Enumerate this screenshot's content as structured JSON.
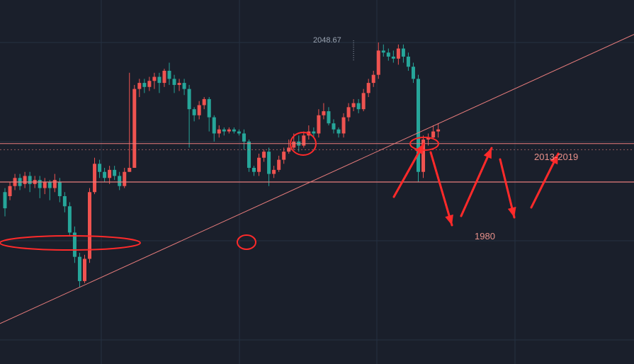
{
  "chart_data": {
    "type": "candlestick",
    "title": "",
    "xlabel": "",
    "ylabel": "",
    "ylim": [
      1890,
      2070
    ],
    "colors": {
      "background": "#1a1f2b",
      "grid": "#253041",
      "up": "#ef5350",
      "down": "#26a69a",
      "line": "#e87c7c",
      "annotation": "#ff2a2a",
      "label": "#e8908a",
      "high_label": "#9aa4b2"
    },
    "high_label": "2048.67",
    "levels": [
      {
        "name": "resistance",
        "value": 1999,
        "style": "solid"
      },
      {
        "name": "reference",
        "value": 1996,
        "style": "dotted"
      },
      {
        "name": "support",
        "value": 1980,
        "label": "1980"
      }
    ],
    "zone_label": "2013-2019",
    "trendline": {
      "from": [
        0,
        1910
      ],
      "to": [
        120,
        2053
      ]
    },
    "candles": [
      [
        1975,
        1967,
        1977,
        1963
      ],
      [
        1973,
        1978,
        1980,
        1971
      ],
      [
        1978,
        1982,
        1984,
        1976
      ],
      [
        1982,
        1978,
        1984,
        1976
      ],
      [
        1979,
        1983,
        1985,
        1977
      ],
      [
        1983,
        1979,
        1985,
        1975
      ],
      [
        1979,
        1981,
        1983,
        1977
      ],
      [
        1981,
        1977,
        1983,
        1972
      ],
      [
        1977,
        1980,
        1982,
        1974
      ],
      [
        1980,
        1977,
        1981,
        1971
      ],
      [
        1977,
        1981,
        1984,
        1975
      ],
      [
        1980,
        1973,
        1982,
        1970
      ],
      [
        1973,
        1968,
        1975,
        1965
      ],
      [
        1968,
        1955,
        1970,
        1953
      ],
      [
        1955,
        1943,
        1958,
        1940
      ],
      [
        1943,
        1931,
        1945,
        1928
      ],
      [
        1931,
        1942,
        1944,
        1930
      ],
      [
        1942,
        1975,
        1977,
        1940
      ],
      [
        1975,
        1989,
        1992,
        1974
      ],
      [
        1989,
        1985,
        1991,
        1982
      ],
      [
        1985,
        1982,
        1987,
        1980
      ],
      [
        1982,
        1986,
        1988,
        1979
      ],
      [
        1986,
        1983,
        1988,
        1981
      ],
      [
        1983,
        1978,
        1985,
        1976
      ],
      [
        1978,
        1985,
        1987,
        1977
      ],
      [
        1985,
        1987,
        2034,
        1985
      ],
      [
        1987,
        2026,
        2028,
        2018
      ],
      [
        2026,
        2029,
        2031,
        2022
      ],
      [
        2029,
        2027,
        2031,
        2024
      ],
      [
        2027,
        2030,
        2032,
        2025
      ],
      [
        2030,
        2032,
        2034,
        2026
      ],
      [
        2032,
        2029,
        2034,
        2024
      ],
      [
        2029,
        2035,
        2036,
        2027
      ],
      [
        2035,
        2031,
        2039,
        2028
      ],
      [
        2031,
        2028,
        2033,
        2024
      ],
      [
        2028,
        2029,
        2031,
        2025
      ],
      [
        2029,
        2026,
        2031,
        2023
      ],
      [
        2026,
        2016,
        2028,
        1997
      ],
      [
        2016,
        2013,
        2017,
        2010
      ],
      [
        2013,
        2018,
        2020,
        2011
      ],
      [
        2018,
        2021,
        2022,
        2016
      ],
      [
        2021,
        2012,
        2022,
        2005
      ],
      [
        2012,
        2004,
        2013,
        2000
      ],
      [
        2004,
        2006,
        2008,
        2002
      ],
      [
        2006,
        2005,
        2007,
        2003
      ],
      [
        2005,
        2006,
        2007,
        2004
      ],
      [
        2006,
        2005,
        2007,
        2004
      ],
      [
        2005,
        2004,
        2006,
        2003
      ],
      [
        2004,
        2000,
        2006,
        1996
      ],
      [
        2000,
        1987,
        2001,
        1985
      ],
      [
        1987,
        1985,
        1988,
        1983
      ],
      [
        1985,
        1992,
        1994,
        1983
      ],
      [
        1992,
        1995,
        1996,
        1990
      ],
      [
        1995,
        1984,
        1997,
        1978
      ],
      [
        1984,
        1986,
        1988,
        1982
      ],
      [
        1986,
        1991,
        1993,
        1985
      ],
      [
        1991,
        1995,
        1997,
        1989
      ],
      [
        1995,
        1997,
        2001,
        1994
      ],
      [
        1997,
        2000,
        2004,
        1996
      ],
      [
        2000,
        1998,
        2003,
        1995
      ],
      [
        1998,
        2003,
        2005,
        1997
      ],
      [
        2003,
        2005,
        2008,
        2001
      ],
      [
        2005,
        2004,
        2007,
        2002
      ],
      [
        2004,
        2013,
        2016,
        2002
      ],
      [
        2013,
        2015,
        2019,
        2011
      ],
      [
        2015,
        2009,
        2017,
        2008
      ],
      [
        2009,
        2006,
        2011,
        2004
      ],
      [
        2006,
        2004,
        2007,
        2002
      ],
      [
        2004,
        2012,
        2014,
        2002
      ],
      [
        2012,
        2017,
        2019,
        2010
      ],
      [
        2017,
        2019,
        2021,
        2015
      ],
      [
        2019,
        2016,
        2021,
        2014
      ],
      [
        2016,
        2024,
        2026,
        2015
      ],
      [
        2024,
        2029,
        2031,
        2022
      ],
      [
        2029,
        2033,
        2035,
        2027
      ],
      [
        2033,
        2045,
        2049,
        2031
      ],
      [
        2045,
        2044,
        2048,
        2042
      ],
      [
        2044,
        2042,
        2046,
        2040
      ],
      [
        2042,
        2041,
        2045,
        2039
      ],
      [
        2041,
        2046,
        2048,
        2038
      ],
      [
        2046,
        2042,
        2048,
        2039
      ],
      [
        2042,
        2037,
        2044,
        2035
      ],
      [
        2037,
        2031,
        2039,
        2029
      ],
      [
        2031,
        1985,
        2033,
        1980
      ],
      [
        1985,
        2001,
        2003,
        1982
      ],
      [
        2001,
        2002,
        2004,
        1998
      ],
      [
        2002,
        2005,
        2008,
        2001
      ],
      [
        2005,
        2006,
        2009,
        2002
      ]
    ]
  }
}
